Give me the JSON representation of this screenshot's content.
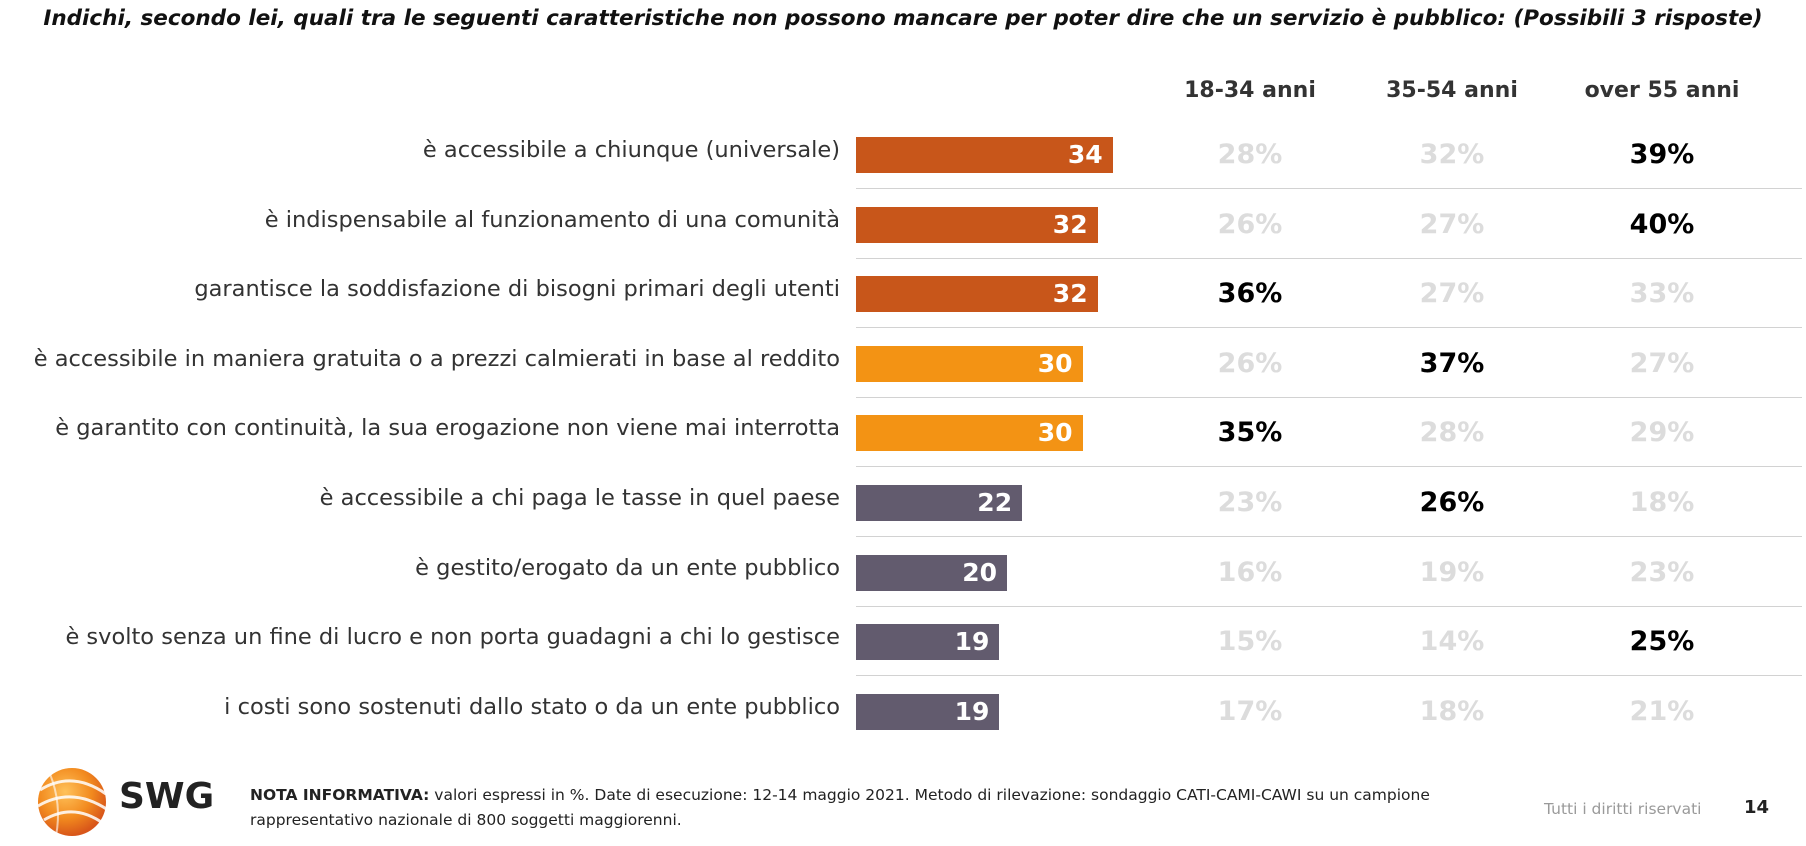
{
  "title": "Indichi, secondo lei, quali tra le seguenti caratteristiche non possono mancare per poter dire che un servizio è pubblico: (Possibili 3 risposte)",
  "columns": [
    "18-34 anni",
    "35-54 anni",
    "over 55 anni"
  ],
  "colors": {
    "dark_orange": "#C8561A",
    "light_orange": "#F39314",
    "gray_purple": "#625B6E",
    "highlight": "#000000",
    "dim": "#DCDCDC"
  },
  "chart_data": {
    "type": "bar",
    "orientation": "horizontal",
    "xlim": [
      0,
      100
    ],
    "categories": [
      "è accessibile a chiunque (universale)",
      "è indispensabile al funzionamento di una comunità",
      "garantisce la soddisfazione di bisogni primari degli utenti",
      "è accessibile in maniera gratuita o a prezzi calmierati in base al reddito",
      "è garantito con continuità, la sua erogazione non viene mai interrotta",
      "è accessibile a chi paga le tasse in quel paese",
      "è gestito/erogato da un ente pubblico",
      "è svolto senza un fine di lucro e non porta guadagni a chi lo gestisce",
      "i costi sono sostenuti dallo stato o da un ente pubblico"
    ],
    "values": [
      34,
      32,
      32,
      30,
      30,
      22,
      20,
      19,
      19
    ],
    "bar_colors": [
      "#C8561A",
      "#C8561A",
      "#C8561A",
      "#F39314",
      "#F39314",
      "#625B6E",
      "#625B6E",
      "#625B6E",
      "#625B6E"
    ],
    "table": [
      [
        {
          "v": "28%",
          "hi": false
        },
        {
          "v": "32%",
          "hi": false
        },
        {
          "v": "39%",
          "hi": true
        }
      ],
      [
        {
          "v": "26%",
          "hi": false
        },
        {
          "v": "27%",
          "hi": false
        },
        {
          "v": "40%",
          "hi": true
        }
      ],
      [
        {
          "v": "36%",
          "hi": true
        },
        {
          "v": "27%",
          "hi": false
        },
        {
          "v": "33%",
          "hi": false
        }
      ],
      [
        {
          "v": "26%",
          "hi": false
        },
        {
          "v": "37%",
          "hi": true
        },
        {
          "v": "27%",
          "hi": false
        }
      ],
      [
        {
          "v": "35%",
          "hi": true
        },
        {
          "v": "28%",
          "hi": false
        },
        {
          "v": "29%",
          "hi": false
        }
      ],
      [
        {
          "v": "23%",
          "hi": false
        },
        {
          "v": "26%",
          "hi": true
        },
        {
          "v": "18%",
          "hi": false
        }
      ],
      [
        {
          "v": "16%",
          "hi": false
        },
        {
          "v": "19%",
          "hi": false
        },
        {
          "v": "23%",
          "hi": false
        }
      ],
      [
        {
          "v": "15%",
          "hi": false
        },
        {
          "v": "14%",
          "hi": false
        },
        {
          "v": "25%",
          "hi": true
        }
      ],
      [
        {
          "v": "17%",
          "hi": false
        },
        {
          "v": "18%",
          "hi": false
        },
        {
          "v": "21%",
          "hi": false
        }
      ]
    ]
  },
  "footer": {
    "logo_text": "SWG",
    "note_label": "NOTA INFORMATIVA:",
    "note_text": " valori espressi in %. Date di esecuzione: 12-14 maggio 2021. Metodo di rilevazione: sondaggio CATI-CAMI-CAWI su un campione rappresentativo nazionale di 800 soggetti maggiorenni.",
    "rights": "Tutti i diritti riservati",
    "page_number": "14"
  }
}
